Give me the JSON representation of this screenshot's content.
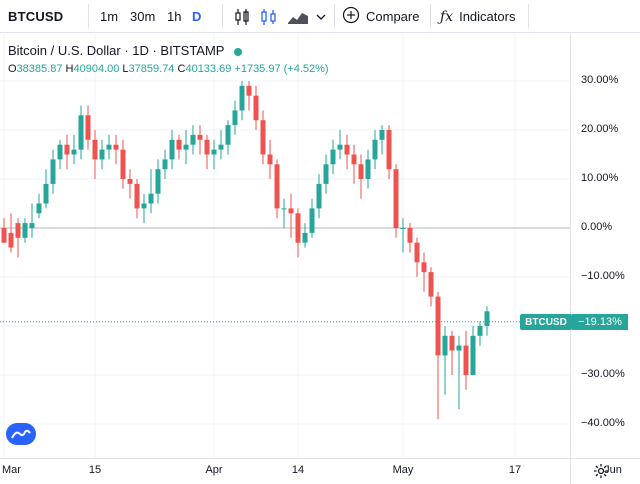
{
  "toolbar": {
    "symbol": "BTCUSD",
    "timeframes": [
      "1m",
      "30m",
      "1h",
      "D"
    ],
    "active_timeframe": "D",
    "compare_label": "Compare",
    "indicators_label": "Indicators",
    "icons": [
      "candles-icon",
      "bars-style-icon",
      "area-style-icon",
      "chevron-down-icon",
      "plus-circle-icon",
      "fx-icon"
    ]
  },
  "legend": {
    "title": "Bitcoin / U.S. Dollar · 1D · BITSTAMP",
    "o_label": "O",
    "o_value": "38385.87",
    "h_label": "H",
    "h_value": "40904.00",
    "l_label": "L",
    "l_value": "37859.74",
    "c_label": "C",
    "c_value": "40133.69",
    "change": "+1735.97 (+4.52%)"
  },
  "price_line": {
    "label": "BTCUSD",
    "value": "−19.13%",
    "color": "#26a69a"
  },
  "colors": {
    "up": "#26a69a",
    "down": "#ef5350",
    "accent": "#2962ff"
  },
  "chart_data": {
    "type": "candlestick",
    "y_unit": "percent",
    "ylim": [
      -45,
      35
    ],
    "y_ticks": [
      "30.00%",
      "20.00%",
      "10.00%",
      "0.00%",
      "−10.00%",
      "−20.00%",
      "−30.00%",
      "−40.00%"
    ],
    "y_tick_values": [
      30,
      20,
      10,
      0,
      -10,
      -20,
      -30,
      -40
    ],
    "x_ticks": [
      "Mar",
      "15",
      "Apr",
      "14",
      "May",
      "17",
      "Jun"
    ],
    "x_tick_index": [
      0,
      13,
      30,
      42,
      57,
      73,
      87
    ],
    "baseline": 0,
    "last_value": -19.13,
    "candles": [
      [
        0,
        -1,
        -3,
        -3,
        2
      ],
      [
        -1,
        1,
        -4,
        -5,
        3
      ],
      [
        1,
        -2,
        -2,
        -6,
        2
      ],
      [
        -2,
        0,
        1,
        -3,
        2
      ],
      [
        0,
        3,
        1,
        -2,
        5
      ],
      [
        3,
        4,
        5,
        2,
        7
      ],
      [
        5,
        8,
        9,
        4,
        12
      ],
      [
        9,
        10,
        14,
        7,
        16
      ],
      [
        14,
        16,
        17,
        12,
        18
      ],
      [
        17,
        16,
        15,
        12,
        19
      ],
      [
        15,
        17,
        16,
        13,
        19
      ],
      [
        16,
        20,
        23,
        14,
        25
      ],
      [
        23,
        24,
        18,
        16,
        25
      ],
      [
        18,
        17,
        14,
        10,
        20
      ],
      [
        14,
        13,
        16,
        12,
        18
      ],
      [
        16,
        18,
        17,
        14,
        19
      ],
      [
        17,
        17,
        16,
        13,
        19
      ],
      [
        16,
        12,
        10,
        8,
        18
      ],
      [
        10,
        8,
        9,
        6,
        12
      ],
      [
        9,
        7,
        4,
        2,
        10
      ],
      [
        4,
        3,
        5,
        1,
        7
      ],
      [
        5,
        6,
        7,
        3,
        12
      ],
      [
        7,
        9,
        12,
        5,
        14
      ],
      [
        12,
        13,
        14,
        10,
        16
      ],
      [
        14,
        17,
        18,
        12,
        20
      ],
      [
        18,
        17,
        16,
        14,
        19
      ],
      [
        16,
        15,
        17,
        13,
        20
      ],
      [
        17,
        18,
        19,
        15,
        21
      ],
      [
        19,
        20,
        18,
        15,
        21
      ],
      [
        18,
        17,
        15,
        12,
        19
      ],
      [
        15,
        14,
        16,
        12,
        18
      ],
      [
        16,
        18,
        17,
        14,
        20
      ],
      [
        17,
        19,
        21,
        15,
        22
      ],
      [
        21,
        23,
        24,
        19,
        26
      ],
      [
        24,
        26,
        29,
        22,
        30
      ],
      [
        29,
        28,
        27,
        24,
        30
      ],
      [
        27,
        25,
        22,
        20,
        29
      ],
      [
        22,
        20,
        15,
        13,
        24
      ],
      [
        15,
        14,
        13,
        10,
        18
      ],
      [
        13,
        8,
        4,
        2,
        14
      ],
      [
        4,
        3,
        4,
        0,
        6
      ],
      [
        4,
        5,
        3,
        -2,
        7
      ],
      [
        3,
        0,
        -3,
        -6,
        4
      ],
      [
        -3,
        -2,
        -1,
        -4,
        1
      ],
      [
        -1,
        2,
        4,
        -2,
        6
      ],
      [
        4,
        8,
        9,
        2,
        11
      ],
      [
        9,
        12,
        13,
        7,
        15
      ],
      [
        13,
        14,
        16,
        11,
        18
      ],
      [
        16,
        18,
        17,
        14,
        20
      ],
      [
        17,
        16,
        15,
        12,
        19
      ],
      [
        15,
        14,
        13,
        9,
        17
      ],
      [
        13,
        12,
        10,
        6,
        15
      ],
      [
        10,
        13,
        14,
        8,
        16
      ],
      [
        14,
        16,
        18,
        12,
        20
      ],
      [
        18,
        19,
        20,
        15,
        21
      ],
      [
        20,
        15,
        12,
        10,
        21
      ],
      [
        12,
        5,
        0,
        -2,
        13
      ],
      [
        0,
        -2,
        0,
        -5,
        2
      ],
      [
        0,
        -1,
        -3,
        -5,
        1
      ],
      [
        -3,
        -5,
        -7,
        -10,
        -2
      ],
      [
        -7,
        -6,
        -9,
        -13,
        -5
      ],
      [
        -9,
        -12,
        -14,
        -16,
        -8
      ],
      [
        -14,
        -20,
        -26,
        -39,
        -13
      ],
      [
        -26,
        -24,
        -22,
        -34,
        -20
      ],
      [
        -22,
        -24,
        -25,
        -30,
        -21
      ],
      [
        -25,
        -23,
        -24,
        -37,
        -22
      ],
      [
        -24,
        -22,
        -30,
        -33,
        -21
      ],
      [
        -30,
        -26,
        -22,
        -30,
        -20
      ],
      [
        -22,
        -21,
        -20,
        -24,
        -19
      ],
      [
        -20,
        -19,
        -17,
        -22,
        -16
      ]
    ]
  }
}
